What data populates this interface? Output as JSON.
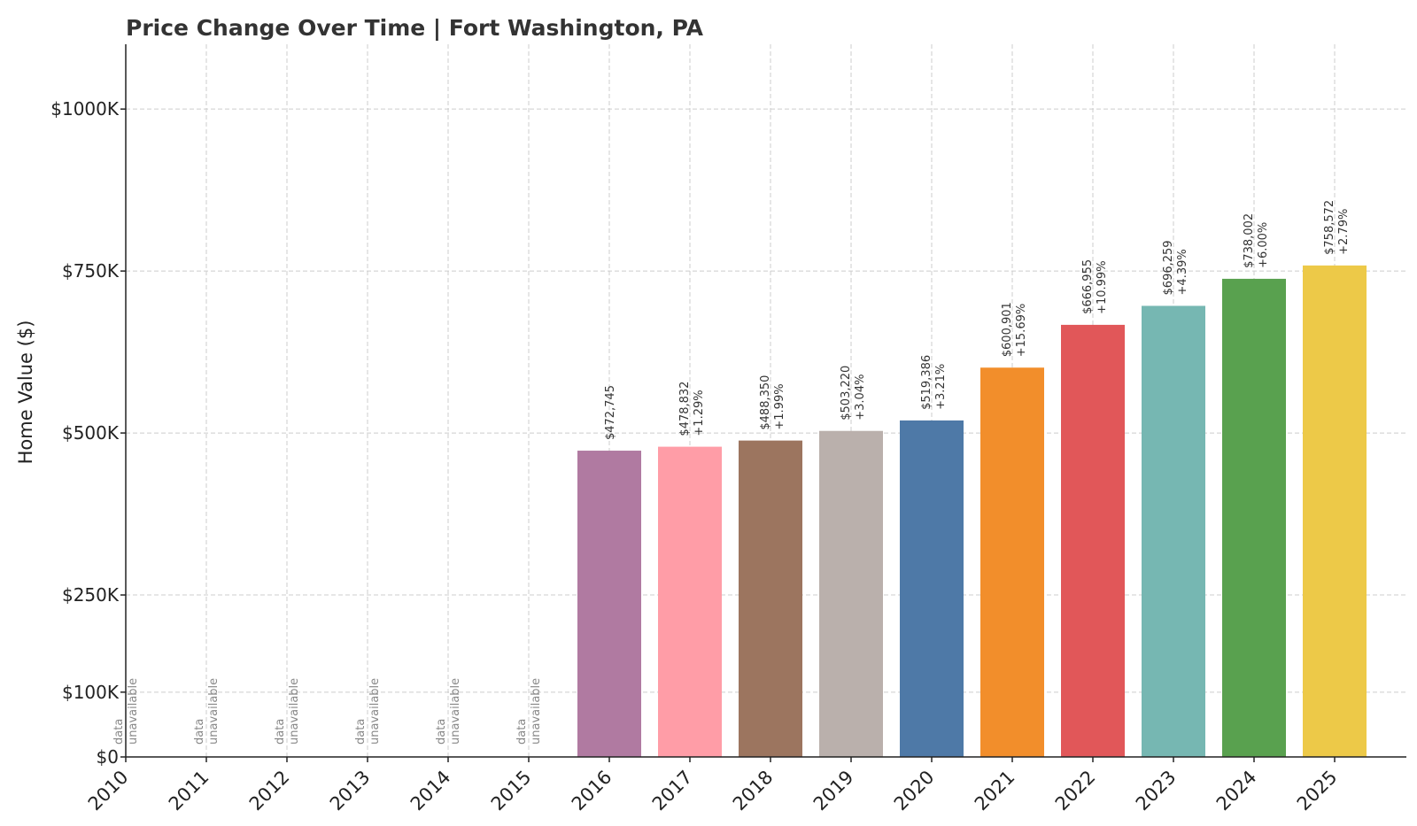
{
  "chart_data": {
    "type": "bar",
    "title": "Price Change Over Time | Fort Washington, PA",
    "xlabel": "",
    "ylabel": "Home Value ($)",
    "ylim": [
      0,
      1100000
    ],
    "yticks": [
      {
        "value": 0,
        "label": "$0"
      },
      {
        "value": 100000,
        "label": "$100K"
      },
      {
        "value": 250000,
        "label": "$250K"
      },
      {
        "value": 500000,
        "label": "$500K"
      },
      {
        "value": 750000,
        "label": "$750K"
      },
      {
        "value": 1000000,
        "label": "$1000K"
      }
    ],
    "grid": true,
    "unavailable_text": [
      "data",
      "unavailable"
    ],
    "bars": [
      {
        "year": "2010",
        "value": null
      },
      {
        "year": "2011",
        "value": null
      },
      {
        "year": "2012",
        "value": null
      },
      {
        "year": "2013",
        "value": null
      },
      {
        "year": "2014",
        "value": null
      },
      {
        "year": "2015",
        "value": null
      },
      {
        "year": "2016",
        "value": 472745,
        "label": "$472,745",
        "change": "",
        "color": "#b07aa1"
      },
      {
        "year": "2017",
        "value": 478832,
        "label": "$478,832",
        "change": "+1.29%",
        "color": "#ff9da7"
      },
      {
        "year": "2018",
        "value": 488350,
        "label": "$488,350",
        "change": "+1.99%",
        "color": "#9c755f"
      },
      {
        "year": "2019",
        "value": 503220,
        "label": "$503,220",
        "change": "+3.04%",
        "color": "#bab0ac"
      },
      {
        "year": "2020",
        "value": 519386,
        "label": "$519,386",
        "change": "+3.21%",
        "color": "#4e79a7"
      },
      {
        "year": "2021",
        "value": 600901,
        "label": "$600,901",
        "change": "+15.69%",
        "color": "#f28e2b"
      },
      {
        "year": "2022",
        "value": 666955,
        "label": "$666,955",
        "change": "+10.99%",
        "color": "#e15759"
      },
      {
        "year": "2023",
        "value": 696259,
        "label": "$696,259",
        "change": "+4.39%",
        "color": "#76b7b2"
      },
      {
        "year": "2024",
        "value": 738002,
        "label": "$738,002",
        "change": "+6.00%",
        "color": "#59a14f"
      },
      {
        "year": "2025",
        "value": 758572,
        "label": "$758,572",
        "change": "+2.79%",
        "color": "#edc948"
      }
    ]
  }
}
